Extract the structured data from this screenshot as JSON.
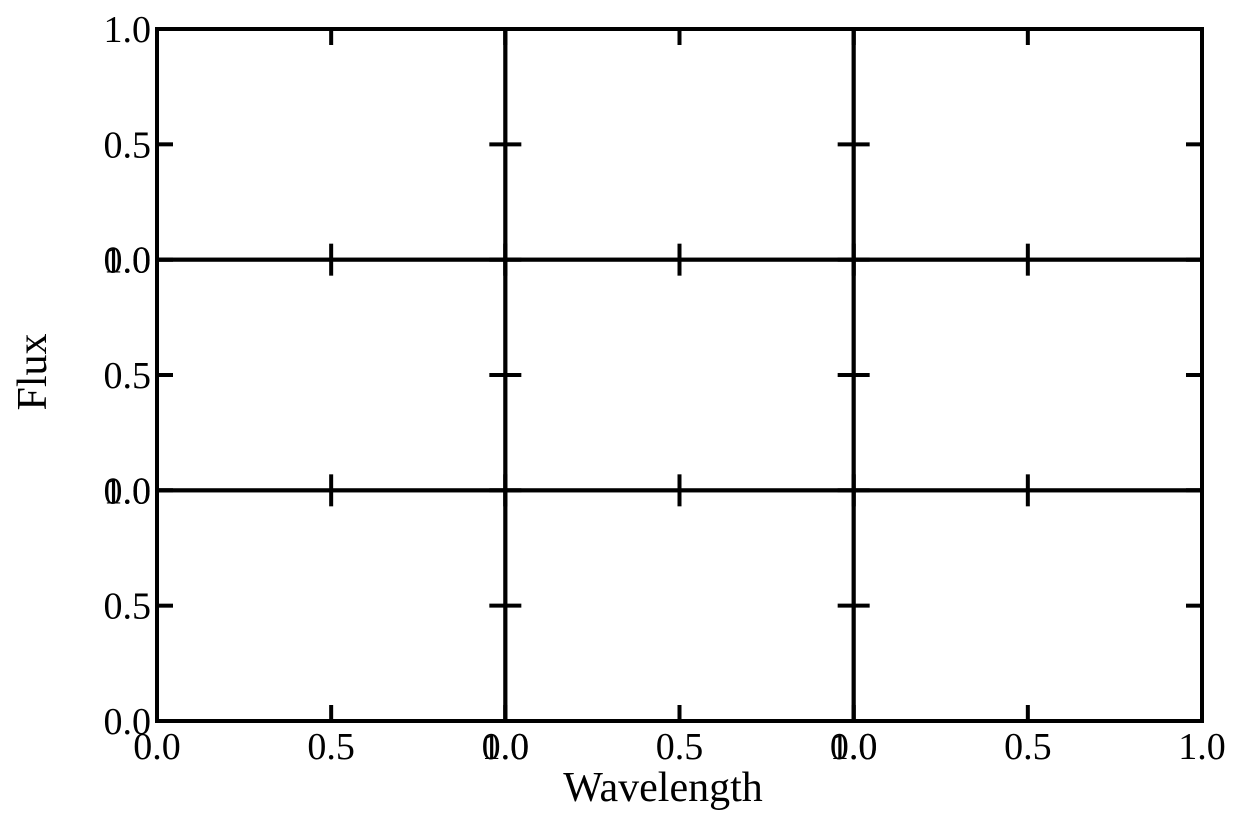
{
  "chart_data": {
    "type": "scatter",
    "layout": {
      "rows": 3,
      "cols": 3,
      "shared_axes": true
    },
    "xlabel": "Wavelength",
    "ylabel": "Flux",
    "xlim": [
      0.0,
      1.0
    ],
    "ylim": [
      0.0,
      1.0
    ],
    "xticks": [
      0.0,
      0.5,
      1.0
    ],
    "yticks": [
      0.0,
      0.5,
      1.0
    ],
    "xtick_labels": [
      "0.0",
      "0.5",
      "1.0"
    ],
    "ytick_labels": [
      "0.0",
      "0.5",
      "1.0"
    ],
    "grid": false,
    "tick_direction": "inout",
    "series": []
  },
  "colors": {
    "axes": "#000000",
    "background": "#ffffff"
  }
}
